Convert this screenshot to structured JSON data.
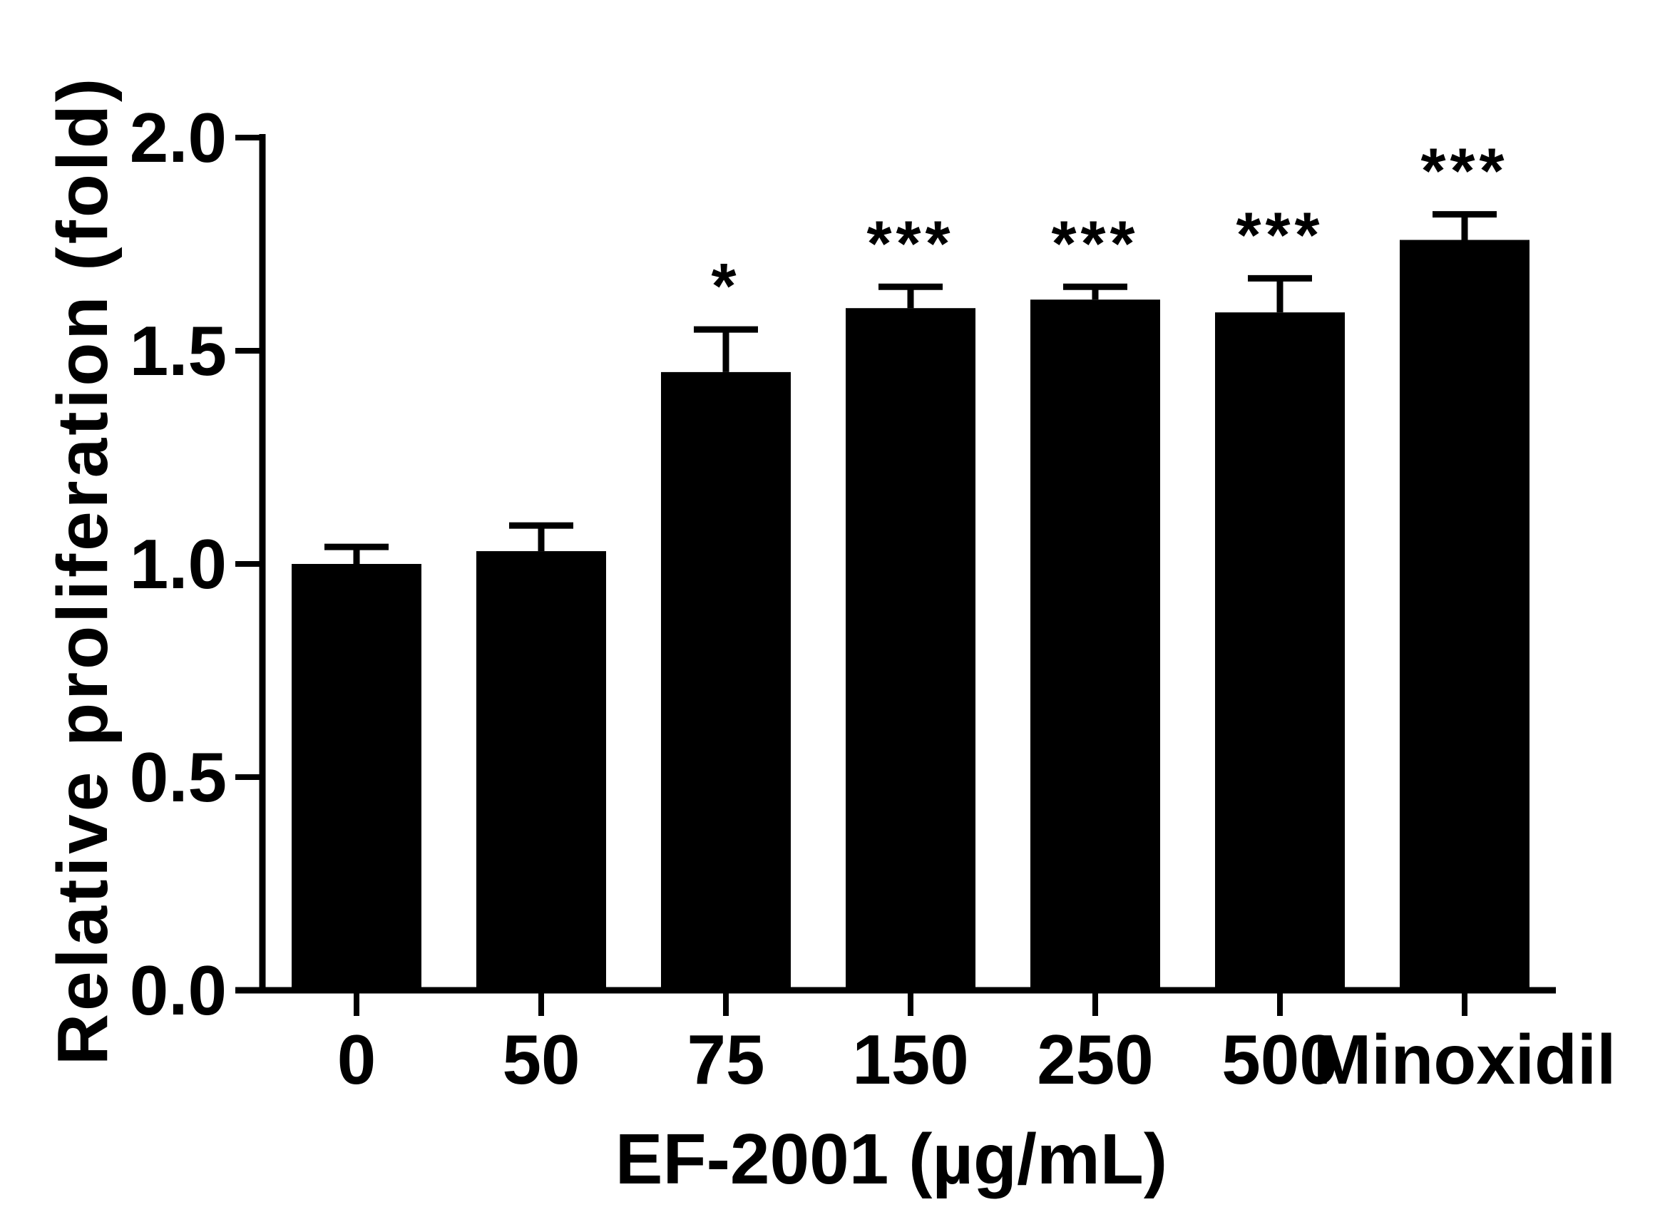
{
  "chart_data": {
    "type": "bar",
    "xlabel": "EF-2001 (µg/mL)",
    "ylabel": "Relative proliferation (fold)",
    "categories": [
      "0",
      "50",
      "75",
      "150",
      "250",
      "500",
      "Minoxidil"
    ],
    "values": [
      1.0,
      1.03,
      1.45,
      1.6,
      1.62,
      1.59,
      1.76
    ],
    "error": [
      0.04,
      0.06,
      0.1,
      0.05,
      0.03,
      0.08,
      0.06
    ],
    "significance": [
      "",
      "",
      "*",
      "***",
      "***",
      "***",
      "***"
    ],
    "ylim": [
      0.0,
      2.0
    ],
    "yticks": [
      "0.0",
      "0.5",
      "1.0",
      "1.5",
      "2.0"
    ],
    "bar_color": "#000000",
    "grid": false
  }
}
